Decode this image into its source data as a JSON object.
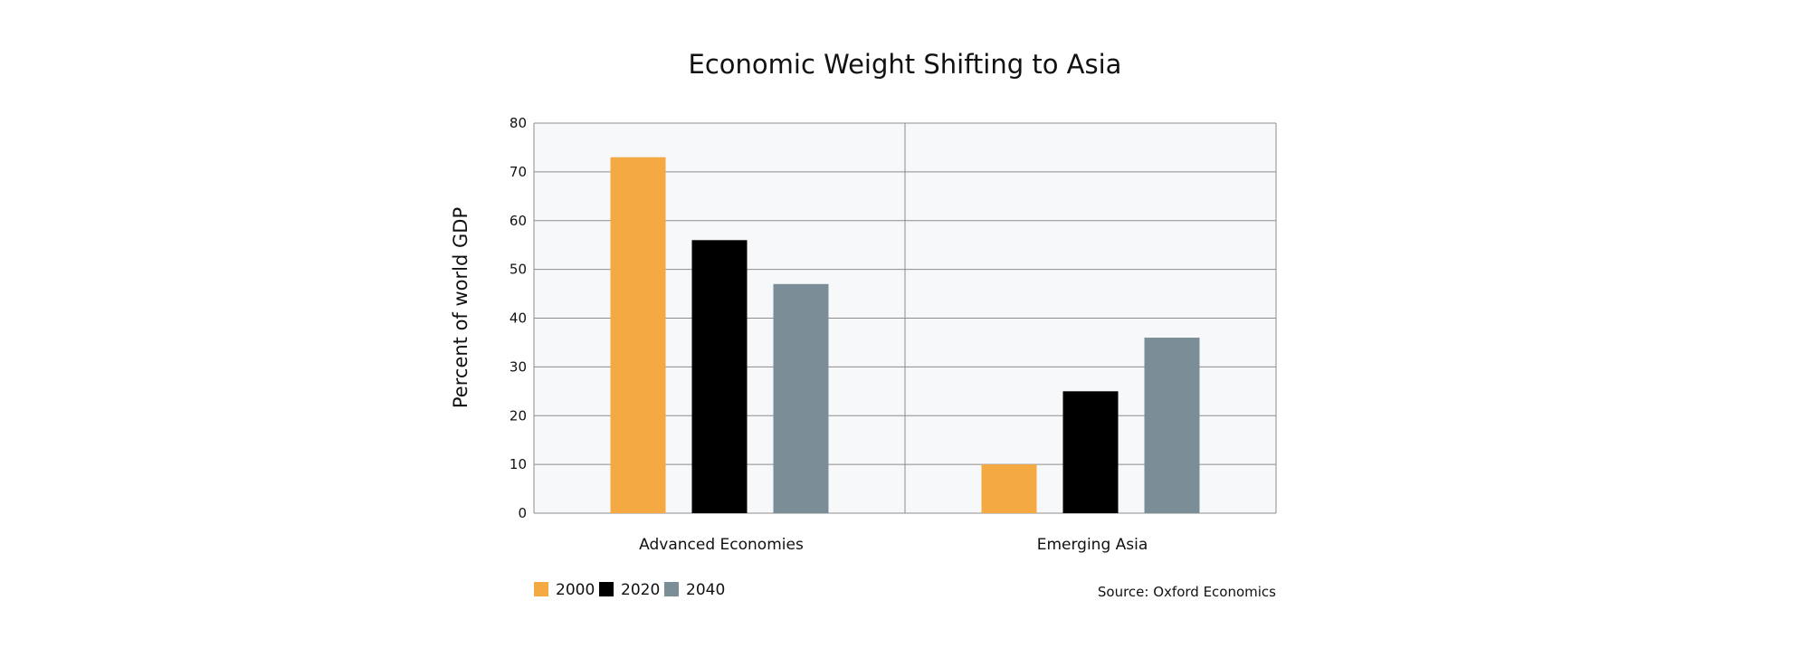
{
  "chart_data": {
    "type": "bar",
    "title": "Economic Weight Shifting to Asia",
    "xlabel": "",
    "ylabel": "Percent of world GDP",
    "categories": [
      "Advanced Economies",
      "Emerging Asia"
    ],
    "series": [
      {
        "name": "2000",
        "values": [
          73,
          10
        ],
        "color": "#f5a942"
      },
      {
        "name": "2020",
        "values": [
          56,
          25
        ],
        "color": "#000000"
      },
      {
        "name": "2040",
        "values": [
          47,
          36
        ],
        "color": "#7b8e98"
      }
    ],
    "ylim": [
      0,
      80
    ],
    "yticks": [
      0,
      10,
      20,
      30,
      40,
      50,
      60,
      70,
      80
    ],
    "grid": true,
    "legend_position": "bottom-left",
    "source": "Source: Oxford Economics",
    "colors": {
      "plot_background": "#f7f8fa",
      "grid": "#8c8c8c",
      "text": "#111111"
    }
  }
}
